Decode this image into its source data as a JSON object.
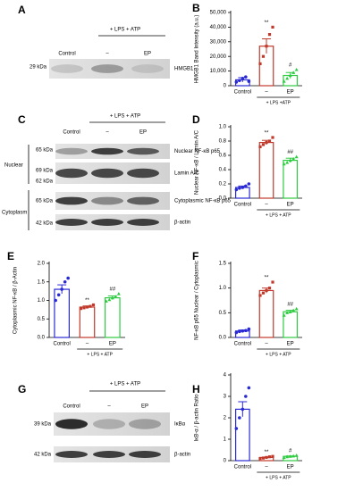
{
  "blots": [
    {
      "panel": "A",
      "group": "+ LPS + ATP",
      "lanes": [
        "Control",
        "–",
        "EP"
      ],
      "rows": [
        {
          "kda": [
            "29 kDa"
          ],
          "label": "HMGB1"
        }
      ]
    },
    {
      "panel": "C",
      "group": "+ LPS + ATP",
      "lanes": [
        "Control",
        "–",
        "EP"
      ],
      "sections": [
        "Nuclear",
        "Cytoplasm"
      ],
      "rows": [
        {
          "kda": [
            "65 kDa"
          ],
          "label": "Nuclear NF-κB p65"
        },
        {
          "kda": [
            "69 kDa",
            "62 kDa"
          ],
          "label": "Lamin A/C"
        },
        {
          "kda": [
            "65 kDa"
          ],
          "label": "Cytoplasmic NF-κB p65"
        },
        {
          "kda": [
            "42 kDa"
          ],
          "label": "β-actin"
        }
      ]
    },
    {
      "panel": "G",
      "group": "+ LPS + ATP",
      "lanes": [
        "Control",
        "–",
        "EP"
      ],
      "rows": [
        {
          "kda": [
            "39 kDa"
          ],
          "label": "IκBα"
        },
        {
          "kda": [
            "42 kDa"
          ],
          "label": "β-actin"
        }
      ]
    }
  ],
  "chart_data": [
    {
      "type": "bar",
      "panel": "B",
      "ylabel": "HMGB1 Band Intensity (a.u.)",
      "group_label": "+ LPS +ATP",
      "categories": [
        "Control",
        "–",
        "EP"
      ],
      "values": [
        4000,
        27000,
        7000
      ],
      "errors": [
        1500,
        5000,
        2000
      ],
      "points": [
        [
          2500,
          3500,
          5000,
          6000,
          3000
        ],
        [
          15000,
          20000,
          27000,
          35000,
          40000
        ],
        [
          3000,
          5000,
          7000,
          9000,
          11000
        ]
      ],
      "annotations": [
        null,
        "**",
        "#"
      ],
      "colors": [
        "#2a2ad4",
        "#c0392b",
        "#2ecc40"
      ],
      "ylim": [
        0,
        50000
      ],
      "yticks": [
        0,
        {
          "value": 10000,
          "label": "10,000"
        },
        {
          "value": 20000,
          "label": "20,000"
        },
        {
          "value": 30000,
          "label": "30,000"
        },
        {
          "value": 40000,
          "label": "40,000"
        },
        {
          "value": 50000,
          "label": "50,000"
        }
      ]
    },
    {
      "type": "bar",
      "panel": "D",
      "ylabel": "Nuclear NF-κB / Lamin A/C",
      "group_label": "+ LPS + ATP",
      "categories": [
        "Control",
        "–",
        "EP"
      ],
      "values": [
        0.15,
        0.78,
        0.53
      ],
      "errors": [
        0.02,
        0.03,
        0.03
      ],
      "points": [
        [
          0.12,
          0.14,
          0.15,
          0.17,
          0.2
        ],
        [
          0.72,
          0.75,
          0.78,
          0.8,
          0.85
        ],
        [
          0.48,
          0.5,
          0.53,
          0.55,
          0.58
        ]
      ],
      "annotations": [
        null,
        "**",
        "##"
      ],
      "colors": [
        "#2a2ad4",
        "#c0392b",
        "#2ecc40"
      ],
      "ylim": [
        0,
        1
      ],
      "yticks": [
        {
          "value": 0,
          "label": "0.0"
        },
        0.2,
        0.4,
        0.6,
        0.8,
        {
          "value": 1,
          "label": "1.0"
        }
      ]
    },
    {
      "type": "bar",
      "panel": "E",
      "ylabel": "Cytoplasmic NF-κB / β-Actin",
      "group_label": "+ LPS + ATP",
      "categories": [
        "Control",
        "–",
        "EP"
      ],
      "values": [
        1.3,
        0.82,
        1.07
      ],
      "errors": [
        0.12,
        0.03,
        0.05
      ],
      "points": [
        [
          1.0,
          1.15,
          1.3,
          1.5,
          1.6
        ],
        [
          0.78,
          0.8,
          0.82,
          0.84,
          0.88
        ],
        [
          0.98,
          1.02,
          1.07,
          1.1,
          1.18
        ]
      ],
      "annotations": [
        null,
        "**",
        "##"
      ],
      "colors": [
        "#2a2ad4",
        "#c0392b",
        "#2ecc40"
      ],
      "ylim": [
        0,
        2
      ],
      "yticks": [
        {
          "value": 0,
          "label": "0.0"
        },
        0.5,
        {
          "value": 1,
          "label": "1.0"
        },
        1.5,
        {
          "value": 2,
          "label": "2.0"
        }
      ]
    },
    {
      "type": "bar",
      "panel": "F",
      "ylabel": "NF-κB p65 Nuclear / Cytoplasmic",
      "group_label": "+ LPS + ATP",
      "categories": [
        "Control",
        "–",
        "EP"
      ],
      "values": [
        0.13,
        0.95,
        0.52
      ],
      "errors": [
        0.02,
        0.05,
        0.03
      ],
      "points": [
        [
          0.1,
          0.12,
          0.13,
          0.14,
          0.17
        ],
        [
          0.85,
          0.9,
          0.95,
          1.0,
          1.12
        ],
        [
          0.45,
          0.5,
          0.52,
          0.55,
          0.58
        ]
      ],
      "annotations": [
        null,
        "**",
        "##"
      ],
      "colors": [
        "#2a2ad4",
        "#c0392b",
        "#2ecc40"
      ],
      "ylim": [
        0,
        1.5
      ],
      "yticks": [
        {
          "value": 0,
          "label": "0.0"
        },
        0.5,
        {
          "value": 1,
          "label": "1.0"
        },
        1.5
      ]
    },
    {
      "type": "bar",
      "panel": "H",
      "ylabel": "IκB-α / β-actin Ratio",
      "group_label": "+ LPS + ATP",
      "categories": [
        "Control",
        "–",
        "EP"
      ],
      "values": [
        2.4,
        0.15,
        0.2
      ],
      "errors": [
        0.35,
        0.02,
        0.02
      ],
      "points": [
        [
          1.5,
          2.0,
          2.4,
          3.0,
          3.4
        ],
        [
          0.1,
          0.12,
          0.15,
          0.18,
          0.2
        ],
        [
          0.15,
          0.18,
          0.2,
          0.22,
          0.25
        ]
      ],
      "annotations": [
        null,
        "**",
        "#"
      ],
      "colors": [
        "#2a2ad4",
        "#c0392b",
        "#2ecc40"
      ],
      "ylim": [
        0,
        4
      ],
      "yticks": [
        0,
        1,
        2,
        3,
        4
      ]
    }
  ]
}
